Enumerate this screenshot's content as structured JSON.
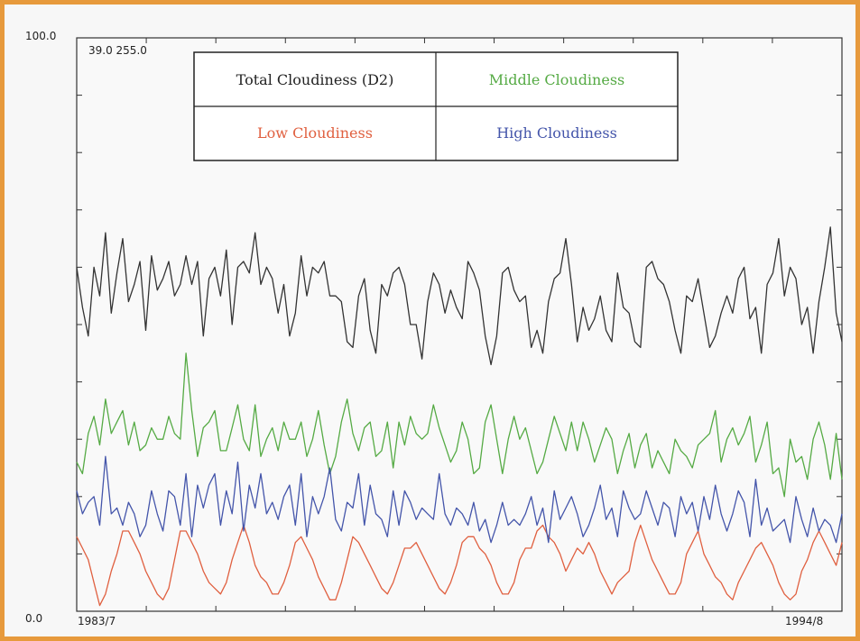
{
  "chart_data": {
    "type": "line",
    "y_top_label": "100.0",
    "y_bottom_label": "0.0",
    "corner_text": "39.0 255.0",
    "x_start_label": "1983/7",
    "x_end_label": "1994/8",
    "ylim": [
      0,
      100
    ],
    "grid": false,
    "legend_placement": "top",
    "n_points": 134,
    "series": [
      {
        "name": "Total Cloudiness (D2)",
        "color": "#333333",
        "values": [
          60,
          53,
          48,
          60,
          55,
          66,
          52,
          59,
          65,
          54,
          57,
          61,
          49,
          62,
          56,
          58,
          61,
          55,
          57,
          62,
          57,
          61,
          48,
          58,
          60,
          55,
          63,
          50,
          60,
          61,
          59,
          66,
          57,
          60,
          58,
          52,
          57,
          48,
          52,
          62,
          55,
          60,
          59,
          61,
          55,
          55,
          54,
          47,
          46,
          55,
          58,
          49,
          45,
          57,
          55,
          59,
          60,
          57,
          50,
          50,
          44,
          54,
          59,
          57,
          52,
          56,
          53,
          51,
          61,
          59,
          56,
          48,
          43,
          48,
          59,
          60,
          56,
          54,
          55,
          46,
          49,
          45,
          54,
          58,
          59,
          65,
          57,
          47,
          53,
          49,
          51,
          55,
          49,
          47,
          59,
          53,
          52,
          47,
          46,
          60,
          61,
          58,
          57,
          54,
          49,
          45,
          55,
          54,
          58,
          52,
          46,
          48,
          52,
          55,
          52,
          58,
          60,
          51,
          53,
          45,
          57,
          59,
          65,
          55,
          60,
          58,
          50,
          53,
          45,
          54,
          60,
          67,
          52,
          47
        ]
      },
      {
        "name": "Middle Cloudiness",
        "color": "#55aa44",
        "values": [
          26,
          24,
          31,
          34,
          29,
          37,
          31,
          33,
          35,
          29,
          33,
          28,
          29,
          32,
          30,
          30,
          34,
          31,
          30,
          45,
          35,
          27,
          32,
          33,
          35,
          28,
          28,
          32,
          36,
          30,
          28,
          36,
          27,
          30,
          32,
          28,
          33,
          30,
          30,
          33,
          27,
          30,
          35,
          29,
          24,
          27,
          33,
          37,
          31,
          28,
          32,
          33,
          27,
          28,
          33,
          25,
          33,
          29,
          34,
          31,
          30,
          31,
          36,
          32,
          29,
          26,
          28,
          33,
          30,
          24,
          25,
          33,
          36,
          30,
          24,
          30,
          34,
          30,
          32,
          28,
          24,
          26,
          30,
          34,
          31,
          28,
          33,
          28,
          33,
          30,
          26,
          29,
          32,
          30,
          24,
          28,
          31,
          25,
          29,
          31,
          25,
          28,
          26,
          24,
          30,
          28,
          27,
          25,
          29,
          30,
          31,
          35,
          26,
          30,
          32,
          29,
          31,
          34,
          26,
          29,
          33,
          24,
          25,
          20,
          30,
          26,
          27,
          23,
          30,
          33,
          29,
          23,
          31,
          23
        ]
      },
      {
        "name": "Low Cloudiness",
        "color": "#e06040",
        "values": [
          13,
          11,
          9,
          5,
          1,
          3,
          7,
          10,
          14,
          14,
          12,
          10,
          7,
          5,
          3,
          2,
          4,
          9,
          14,
          14,
          12,
          10,
          7,
          5,
          4,
          3,
          5,
          9,
          12,
          15,
          12,
          8,
          6,
          5,
          3,
          3,
          5,
          8,
          12,
          13,
          11,
          9,
          6,
          4,
          2,
          2,
          5,
          9,
          13,
          12,
          10,
          8,
          6,
          4,
          3,
          5,
          8,
          11,
          11,
          12,
          10,
          8,
          6,
          4,
          3,
          5,
          8,
          12,
          13,
          13,
          11,
          10,
          8,
          5,
          3,
          3,
          5,
          9,
          11,
          11,
          14,
          15,
          13,
          12,
          10,
          7,
          9,
          11,
          10,
          12,
          10,
          7,
          5,
          3,
          5,
          6,
          7,
          12,
          15,
          12,
          9,
          7,
          5,
          3,
          3,
          5,
          10,
          12,
          14,
          10,
          8,
          6,
          5,
          3,
          2,
          5,
          7,
          9,
          11,
          12,
          10,
          8,
          5,
          3,
          2,
          3,
          7,
          9,
          12,
          14,
          12,
          10,
          8,
          12
        ]
      },
      {
        "name": "High Cloudiness",
        "color": "#4455aa",
        "values": [
          21,
          17,
          19,
          20,
          15,
          27,
          17,
          18,
          15,
          19,
          17,
          13,
          15,
          21,
          17,
          14,
          21,
          20,
          15,
          24,
          13,
          22,
          18,
          22,
          24,
          15,
          21,
          17,
          26,
          14,
          22,
          18,
          24,
          17,
          19,
          16,
          20,
          22,
          15,
          24,
          13,
          20,
          17,
          20,
          25,
          16,
          14,
          19,
          18,
          24,
          15,
          22,
          17,
          16,
          13,
          21,
          15,
          21,
          19,
          16,
          18,
          17,
          16,
          24,
          17,
          15,
          18,
          17,
          15,
          19,
          14,
          16,
          12,
          15,
          19,
          15,
          16,
          15,
          17,
          20,
          15,
          18,
          12,
          21,
          16,
          18,
          20,
          17,
          13,
          15,
          18,
          22,
          16,
          18,
          13,
          21,
          18,
          16,
          17,
          21,
          18,
          15,
          19,
          18,
          13,
          20,
          17,
          19,
          14,
          20,
          16,
          22,
          17,
          14,
          17,
          21,
          19,
          13,
          23,
          15,
          18,
          14,
          15,
          16,
          12,
          20,
          16,
          13,
          18,
          14,
          16,
          15,
          12,
          17
        ]
      }
    ]
  }
}
